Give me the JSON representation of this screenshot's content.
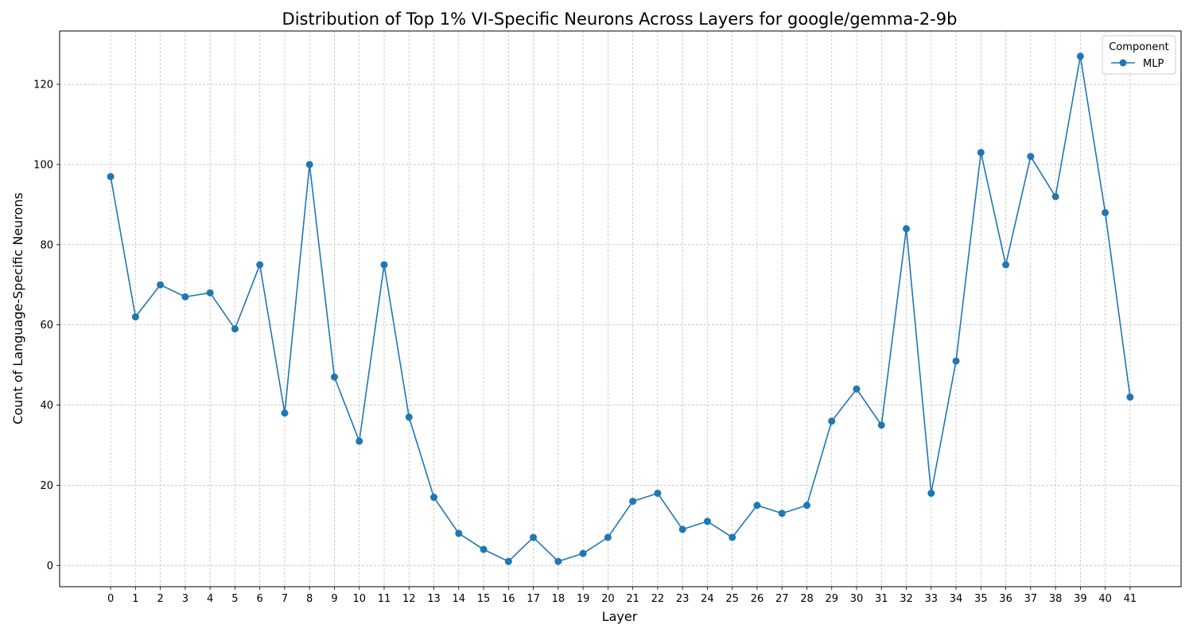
{
  "chart_data": {
    "type": "line",
    "title": "Distribution of Top 1% VI-Specific Neurons Across Layers for google/gemma-2-9b",
    "xlabel": "Layer",
    "ylabel": "Count of Language-Specific Neurons",
    "x": [
      0,
      1,
      2,
      3,
      4,
      5,
      6,
      7,
      8,
      9,
      10,
      11,
      12,
      13,
      14,
      15,
      16,
      17,
      18,
      19,
      20,
      21,
      22,
      23,
      24,
      25,
      26,
      27,
      28,
      29,
      30,
      31,
      32,
      33,
      34,
      35,
      36,
      37,
      38,
      39,
      40,
      41
    ],
    "series": [
      {
        "name": "MLP",
        "values": [
          97,
          62,
          70,
          67,
          68,
          59,
          75,
          38,
          100,
          47,
          31,
          75,
          37,
          17,
          8,
          4,
          1,
          7,
          1,
          3,
          7,
          16,
          18,
          9,
          11,
          7,
          15,
          13,
          15,
          36,
          44,
          35,
          84,
          18,
          51,
          103,
          75,
          102,
          92,
          127,
          88,
          42
        ],
        "color": "#1f77b4",
        "marker": "circle"
      }
    ],
    "xlim": [
      -2.05,
      43.05
    ],
    "ylim": [
      -5.3,
      133.3
    ],
    "yticks": [
      0,
      20,
      40,
      60,
      80,
      100,
      120
    ],
    "xticks": [
      0,
      1,
      2,
      3,
      4,
      5,
      6,
      7,
      8,
      9,
      10,
      11,
      12,
      13,
      14,
      15,
      16,
      17,
      18,
      19,
      20,
      21,
      22,
      23,
      24,
      25,
      26,
      27,
      28,
      29,
      30,
      31,
      32,
      33,
      34,
      35,
      36,
      37,
      38,
      39,
      40,
      41
    ],
    "grid": true,
    "legend": {
      "title": "Component",
      "placement": "top-right"
    }
  }
}
